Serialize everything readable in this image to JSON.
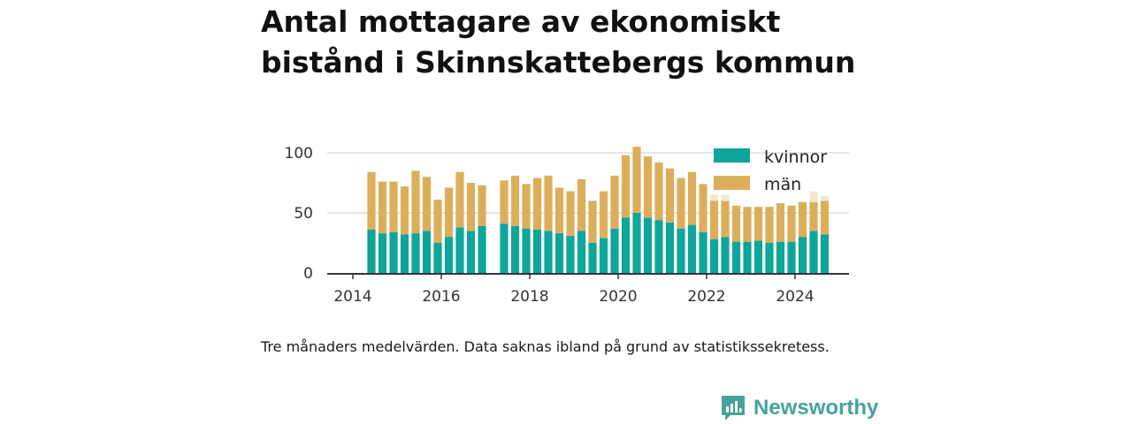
{
  "title": "Antal mottagare av ekonomiskt bistånd i Skinnskattebergs kommun",
  "caption": "Tre månaders medelvärden. Data saknas ibland på grund av statistikssekretess.",
  "brand": "Newsworthy",
  "colors": {
    "kvinnor": "#0ea59a",
    "man": "#dcae5a",
    "man_faded": "#f4e7cd",
    "kvinnor_faded": "#cdeeea"
  },
  "chart_data": {
    "type": "bar",
    "stacked": true,
    "ylim": [
      0,
      110
    ],
    "yticks": [
      0,
      50,
      100
    ],
    "xticks": [
      2014,
      2016,
      2018,
      2020,
      2022,
      2024
    ],
    "grid": true,
    "legend": "top-right",
    "series_names": [
      "kvinnor",
      "män"
    ],
    "bars": [
      {
        "x": 2014.42,
        "kvinnor": 36,
        "man": 48
      },
      {
        "x": 2014.67,
        "kvinnor": 33,
        "man": 43
      },
      {
        "x": 2014.92,
        "kvinnor": 34,
        "man": 42
      },
      {
        "x": 2015.17,
        "kvinnor": 32,
        "man": 40
      },
      {
        "x": 2015.42,
        "kvinnor": 33,
        "man": 52
      },
      {
        "x": 2015.67,
        "kvinnor": 35,
        "man": 45
      },
      {
        "x": 2015.92,
        "kvinnor": 25,
        "man": 36
      },
      {
        "x": 2016.17,
        "kvinnor": 30,
        "man": 41
      },
      {
        "x": 2016.42,
        "kvinnor": 38,
        "man": 46
      },
      {
        "x": 2016.67,
        "kvinnor": 35,
        "man": 40
      },
      {
        "x": 2016.92,
        "kvinnor": 39,
        "man": 34
      },
      {
        "x": 2017.42,
        "kvinnor": 41,
        "man": 36
      },
      {
        "x": 2017.67,
        "kvinnor": 39,
        "man": 42
      },
      {
        "x": 2017.92,
        "kvinnor": 37,
        "man": 37
      },
      {
        "x": 2018.17,
        "kvinnor": 36,
        "man": 43
      },
      {
        "x": 2018.42,
        "kvinnor": 35,
        "man": 46
      },
      {
        "x": 2018.67,
        "kvinnor": 33,
        "man": 38
      },
      {
        "x": 2018.92,
        "kvinnor": 31,
        "man": 37
      },
      {
        "x": 2019.17,
        "kvinnor": 35,
        "man": 43
      },
      {
        "x": 2019.42,
        "kvinnor": 25,
        "man": 35
      },
      {
        "x": 2019.67,
        "kvinnor": 29,
        "man": 39
      },
      {
        "x": 2019.92,
        "kvinnor": 37,
        "man": 44
      },
      {
        "x": 2020.17,
        "kvinnor": 46,
        "man": 52
      },
      {
        "x": 2020.42,
        "kvinnor": 50,
        "man": 55
      },
      {
        "x": 2020.67,
        "kvinnor": 46,
        "man": 51
      },
      {
        "x": 2020.92,
        "kvinnor": 44,
        "man": 48
      },
      {
        "x": 2021.17,
        "kvinnor": 42,
        "man": 45
      },
      {
        "x": 2021.42,
        "kvinnor": 37,
        "man": 42
      },
      {
        "x": 2021.67,
        "kvinnor": 40,
        "man": 44
      },
      {
        "x": 2021.92,
        "kvinnor": 34,
        "man": 40
      },
      {
        "x": 2022.17,
        "kvinnor": 28,
        "man": 32,
        "faded_man": 5
      },
      {
        "x": 2022.42,
        "kvinnor": 30,
        "man": 30,
        "faded_man": 5
      },
      {
        "x": 2022.67,
        "kvinnor": 26,
        "man": 30
      },
      {
        "x": 2022.92,
        "kvinnor": 26,
        "man": 29
      },
      {
        "x": 2023.17,
        "kvinnor": 27,
        "man": 28
      },
      {
        "x": 2023.42,
        "kvinnor": 25,
        "man": 30
      },
      {
        "x": 2023.67,
        "kvinnor": 26,
        "man": 32
      },
      {
        "x": 2023.92,
        "kvinnor": 26,
        "man": 30
      },
      {
        "x": 2024.17,
        "kvinnor": 30,
        "man": 29
      },
      {
        "x": 2024.42,
        "kvinnor": 35,
        "man": 24,
        "faded_man": 9
      },
      {
        "x": 2024.67,
        "kvinnor": 32,
        "man": 28,
        "faded_man": 4
      }
    ]
  }
}
